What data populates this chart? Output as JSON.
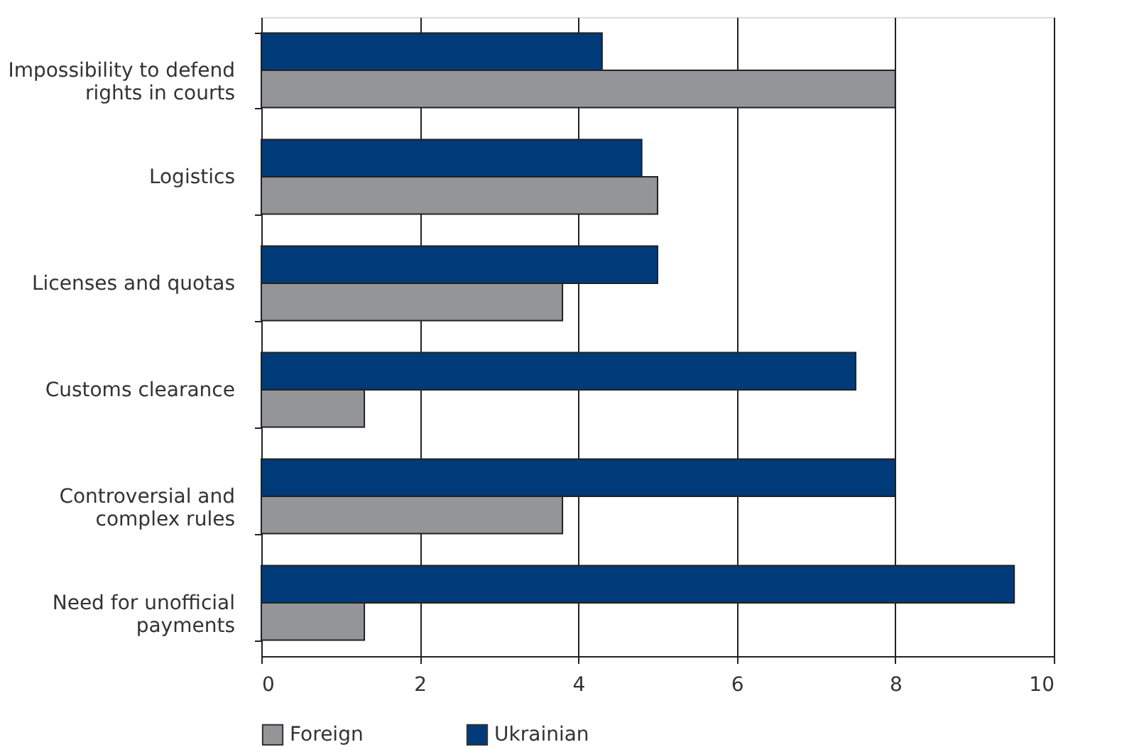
{
  "chart_data": {
    "type": "bar",
    "orientation": "horizontal",
    "categories": [
      "Impossibility to defend rights in courts",
      "Logistics",
      "Licenses and quotas",
      "Customs clearance",
      "Controversial and complex rules",
      "Need for unofficial payments"
    ],
    "series": [
      {
        "name": "Ukrainian",
        "color": "#003a78",
        "values": [
          4.3,
          4.8,
          5.0,
          7.5,
          8.0,
          9.5
        ]
      },
      {
        "name": "Foreign",
        "color": "#939598",
        "values": [
          8.0,
          5.0,
          3.8,
          1.3,
          3.8,
          1.3
        ]
      }
    ],
    "xlim": [
      0,
      10
    ],
    "xticks": [
      0,
      2,
      4,
      6,
      8,
      10
    ],
    "grid": "x",
    "legend": "bottom left"
  }
}
